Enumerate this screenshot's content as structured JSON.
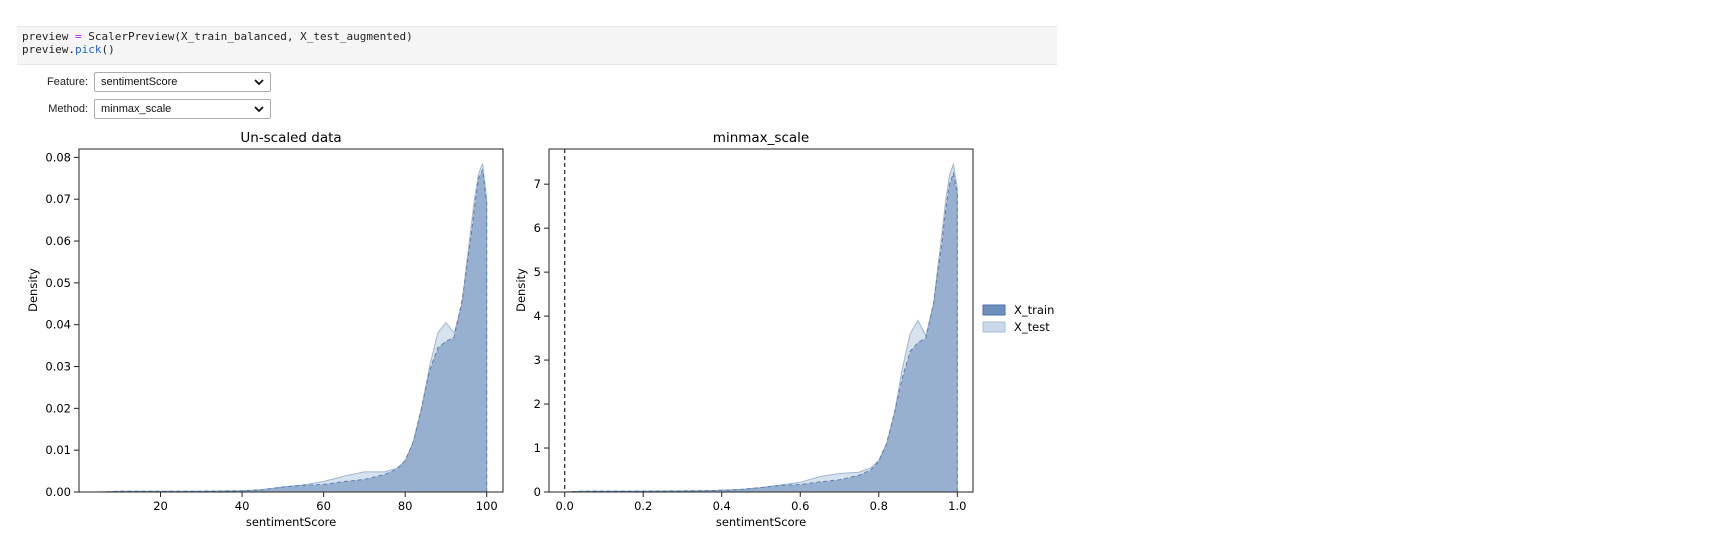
{
  "code": {
    "line1": {
      "var": "preview",
      "op": " = ",
      "rest": "ScalerPreview(X_train_balanced, X_test_augmented)"
    },
    "line2": {
      "obj": "preview.",
      "fn": "pick",
      "rest": "()"
    }
  },
  "widgets": {
    "feature": {
      "label": "Feature:",
      "value": "sentimentScore"
    },
    "method": {
      "label": "Method:",
      "value": "minmax_scale"
    }
  },
  "colors": {
    "train": "#6d8fbb",
    "test": "#c9d8ea"
  },
  "legend": [
    "X_train",
    "X_test"
  ],
  "chart_data": [
    {
      "type": "area",
      "title": "Un-scaled data",
      "xlabel": "sentimentScore",
      "ylabel": "Density",
      "xlim": [
        0,
        104
      ],
      "ylim": [
        0,
        0.082
      ],
      "xticks": [
        20,
        40,
        60,
        80,
        100
      ],
      "yticks": [
        0.0,
        0.01,
        0.02,
        0.03,
        0.04,
        0.05,
        0.06,
        0.07,
        0.08
      ],
      "ytick_labels": [
        "0.00",
        "0.01",
        "0.02",
        "0.03",
        "0.04",
        "0.05",
        "0.06",
        "0.07",
        "0.08"
      ],
      "grid": false,
      "series": [
        {
          "name": "X_train",
          "x": [
            5,
            10,
            20,
            30,
            40,
            45,
            50,
            55,
            60,
            65,
            70,
            75,
            78,
            80,
            82,
            84,
            86,
            88,
            90,
            92,
            94,
            95,
            96,
            97,
            98,
            99,
            100
          ],
          "y": [
            0.0,
            0.0002,
            0.0002,
            0.0002,
            0.0003,
            0.0005,
            0.0012,
            0.0016,
            0.0018,
            0.0025,
            0.003,
            0.0042,
            0.0055,
            0.0075,
            0.012,
            0.02,
            0.029,
            0.0345,
            0.036,
            0.037,
            0.046,
            0.053,
            0.06,
            0.068,
            0.075,
            0.077,
            0.069
          ]
        },
        {
          "name": "X_test",
          "x": [
            5,
            10,
            20,
            30,
            40,
            45,
            50,
            55,
            60,
            65,
            70,
            75,
            78,
            80,
            82,
            84,
            86,
            88,
            90,
            92,
            94,
            95,
            96,
            97,
            98,
            99,
            100
          ],
          "y": [
            0.0,
            0.0002,
            0.0002,
            0.0002,
            0.0003,
            0.0006,
            0.0012,
            0.0017,
            0.0025,
            0.0038,
            0.0048,
            0.0048,
            0.0057,
            0.0075,
            0.012,
            0.02,
            0.03,
            0.038,
            0.0405,
            0.038,
            0.045,
            0.054,
            0.062,
            0.07,
            0.076,
            0.0785,
            0.07
          ]
        }
      ]
    },
    {
      "type": "area",
      "title": "minmax_scale",
      "xlabel": "sentimentScore",
      "ylabel": "Density",
      "xlim": [
        -0.04,
        1.04
      ],
      "ylim": [
        0,
        7.8
      ],
      "xticks": [
        0.0,
        0.2,
        0.4,
        0.6,
        0.8,
        1.0
      ],
      "xtick_labels": [
        "0.0",
        "0.2",
        "0.4",
        "0.6",
        "0.8",
        "1.0"
      ],
      "yticks": [
        0,
        1,
        2,
        3,
        4,
        5,
        6,
        7
      ],
      "vline_x": 0.0,
      "grid": false,
      "series": [
        {
          "name": "X_train",
          "x": [
            0,
            0.05,
            0.2,
            0.35,
            0.4,
            0.45,
            0.5,
            0.55,
            0.6,
            0.65,
            0.7,
            0.75,
            0.78,
            0.8,
            0.82,
            0.84,
            0.86,
            0.88,
            0.9,
            0.92,
            0.94,
            0.95,
            0.96,
            0.97,
            0.98,
            0.99,
            1.0
          ],
          "y": [
            0.0,
            0.02,
            0.02,
            0.03,
            0.04,
            0.06,
            0.1,
            0.15,
            0.17,
            0.23,
            0.28,
            0.38,
            0.5,
            0.7,
            1.1,
            1.8,
            2.6,
            3.2,
            3.4,
            3.5,
            4.3,
            5.0,
            5.6,
            6.4,
            7.0,
            7.25,
            6.8
          ]
        },
        {
          "name": "X_test",
          "x": [
            0,
            0.05,
            0.2,
            0.35,
            0.4,
            0.45,
            0.5,
            0.55,
            0.6,
            0.65,
            0.7,
            0.75,
            0.78,
            0.8,
            0.82,
            0.84,
            0.86,
            0.88,
            0.9,
            0.92,
            0.94,
            0.95,
            0.96,
            0.97,
            0.98,
            0.99,
            1.0
          ],
          "y": [
            0.0,
            0.02,
            0.02,
            0.03,
            0.04,
            0.06,
            0.1,
            0.16,
            0.22,
            0.35,
            0.42,
            0.45,
            0.55,
            0.72,
            1.1,
            1.8,
            2.8,
            3.6,
            3.9,
            3.55,
            4.3,
            5.1,
            5.8,
            6.6,
            7.2,
            7.45,
            6.9
          ]
        }
      ]
    }
  ]
}
